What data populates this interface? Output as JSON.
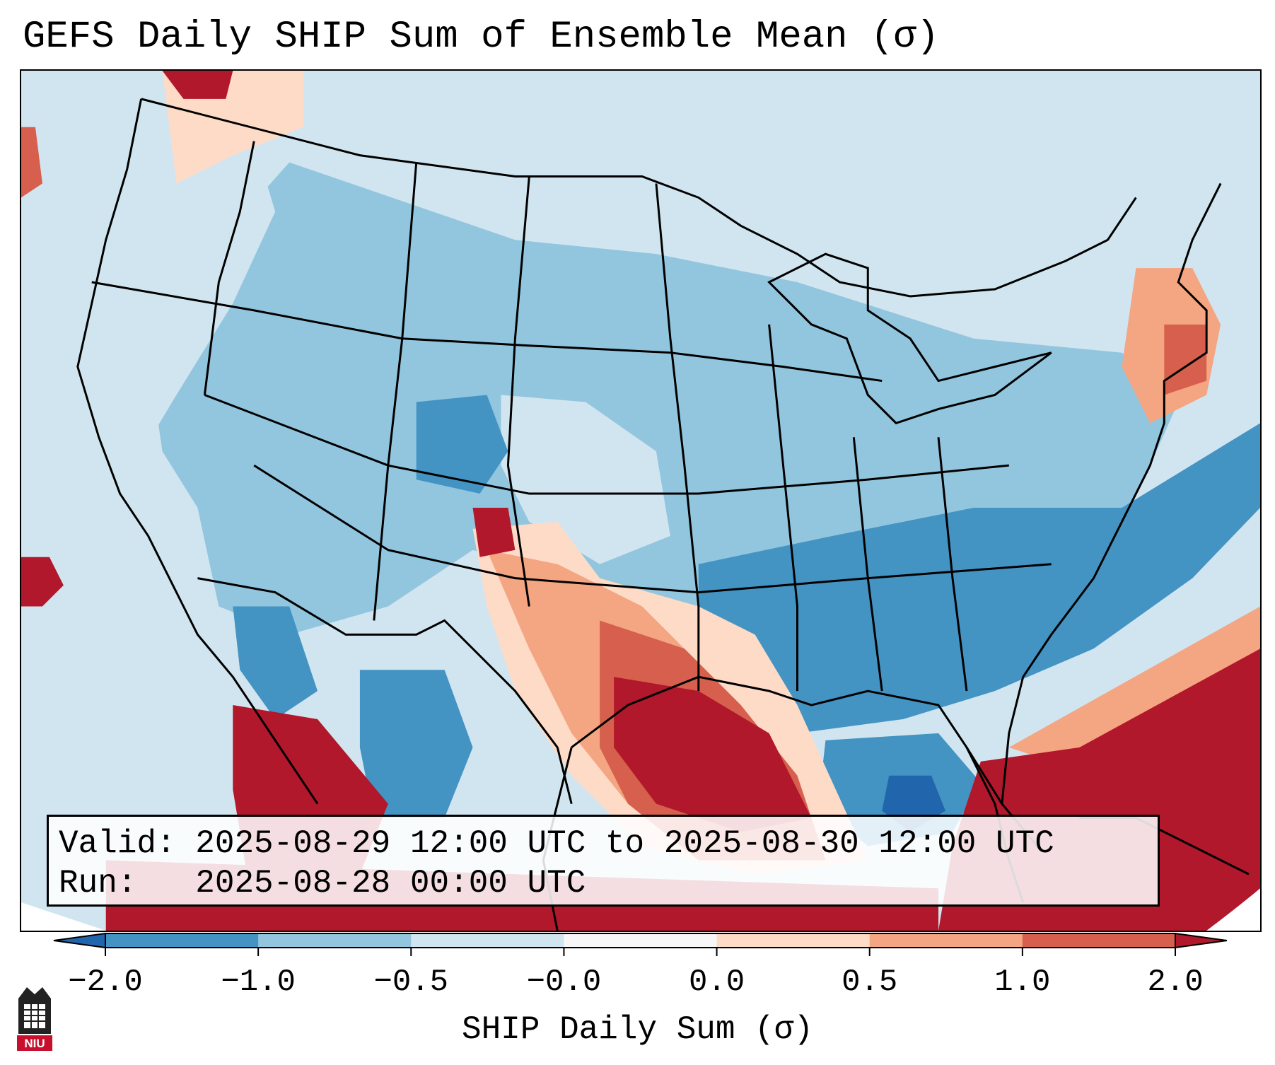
{
  "title": "GEFS Daily SHIP Sum of Ensemble Mean (σ)",
  "info": {
    "valid_line": "Valid: 2025-08-29 12:00 UTC to 2025-08-30 12:00 UTC",
    "run_line": "Run:   2025-08-28 00:00 UTC"
  },
  "colorbar": {
    "label": "SHIP Daily Sum (σ)",
    "ticks": [
      "−2.0",
      "−1.0",
      "−0.5",
      "−0.0",
      "0.0",
      "0.5",
      "1.0",
      "2.0"
    ],
    "colors": [
      "#4393c3",
      "#92c5de",
      "#d1e5f0",
      "#f7f7f7",
      "#fddbc7",
      "#f4a582",
      "#d6604d"
    ],
    "extend_low_color": "#2166ac",
    "extend_high_color": "#b2182b"
  },
  "logo": {
    "text": "NIU",
    "icon": "university-tower-icon"
  }
}
